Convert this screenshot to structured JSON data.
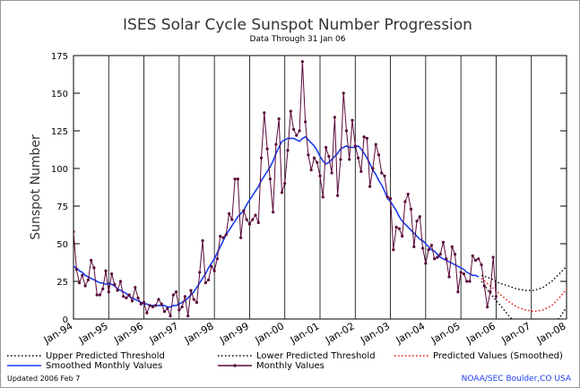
{
  "chart_data": {
    "type": "line",
    "title": "ISES Solar Cycle Sunspot Number Progression",
    "subtitle": "Data Through 31 Jan 06",
    "y_label": "Sunspot Number",
    "updated": "Updated 2006 Feb  7",
    "source": "NOAA/SEC Boulder,CO USA",
    "ylim": [
      0,
      175
    ],
    "yticks": [
      0,
      25,
      50,
      75,
      100,
      125,
      150,
      175
    ],
    "xlim": [
      "1994-01",
      "2008-01"
    ],
    "xticks": [
      {
        "value": "1994-01",
        "label": "Jan-94"
      },
      {
        "value": "1995-01",
        "label": "Jan-95"
      },
      {
        "value": "1996-01",
        "label": "Jan-96"
      },
      {
        "value": "1997-01",
        "label": "Jan-97"
      },
      {
        "value": "1998-01",
        "label": "Jan-98"
      },
      {
        "value": "1999-01",
        "label": "Jan-99"
      },
      {
        "value": "2000-01",
        "label": "Jan-00"
      },
      {
        "value": "2001-01",
        "label": "Jan-01"
      },
      {
        "value": "2002-01",
        "label": "Jan-02"
      },
      {
        "value": "2003-01",
        "label": "Jan-03"
      },
      {
        "value": "2004-01",
        "label": "Jan-04"
      },
      {
        "value": "2005-01",
        "label": "Jan-05"
      },
      {
        "value": "2006-01",
        "label": "Jan-06"
      },
      {
        "value": "2007-01",
        "label": "Jan-07"
      },
      {
        "value": "2008-01",
        "label": "Jan-08"
      }
    ],
    "grid": true,
    "series": [
      {
        "name": "Upper Predicted Threshold",
        "color": "#000000",
        "style": "dotted",
        "x": [
          "2005-08",
          "2005-11",
          "2006-02",
          "2006-05",
          "2006-08",
          "2006-11",
          "2007-02",
          "2007-05",
          "2007-08",
          "2007-11",
          "2008-01"
        ],
        "values": [
          29,
          27,
          24,
          22,
          20,
          19,
          19,
          21,
          25,
          31,
          35
        ]
      },
      {
        "name": "Lower Predicted Threshold",
        "color": "#000000",
        "style": "dotted",
        "x": [
          "2005-08",
          "2005-11",
          "2006-02",
          "2006-05",
          "2006-08",
          "2006-11",
          "2007-02",
          "2007-05",
          "2007-08",
          "2007-11",
          "2008-01"
        ],
        "values": [
          25,
          17,
          10,
          3,
          -4,
          -8,
          -9,
          -8,
          -5,
          2,
          8
        ]
      },
      {
        "name": "Predicted Values (Smoothed)",
        "color": "#e01010",
        "style": "dotted",
        "x": [
          "2005-08",
          "2005-11",
          "2006-02",
          "2006-05",
          "2006-08",
          "2006-11",
          "2007-02",
          "2007-05",
          "2007-08",
          "2007-11",
          "2008-01"
        ],
        "values": [
          27,
          22,
          17,
          12,
          8,
          6,
          5,
          6,
          9,
          15,
          20
        ]
      },
      {
        "name": "Smoothed Monthly Values",
        "color": "#1a3cf0",
        "style": "solid",
        "x": [
          "1994-01",
          "1994-02",
          "1994-03",
          "1994-04",
          "1994-05",
          "1994-06",
          "1994-07",
          "1994-08",
          "1994-09",
          "1994-10",
          "1994-11",
          "1994-12",
          "1995-01",
          "1995-02",
          "1995-03",
          "1995-04",
          "1995-05",
          "1995-06",
          "1995-07",
          "1995-08",
          "1995-09",
          "1995-10",
          "1995-11",
          "1995-12",
          "1996-01",
          "1996-02",
          "1996-03",
          "1996-04",
          "1996-05",
          "1996-06",
          "1996-07",
          "1996-08",
          "1996-09",
          "1996-10",
          "1996-11",
          "1996-12",
          "1997-01",
          "1997-02",
          "1997-03",
          "1997-04",
          "1997-05",
          "1997-06",
          "1997-07",
          "1997-08",
          "1997-09",
          "1997-10",
          "1997-11",
          "1997-12",
          "1998-01",
          "1998-02",
          "1998-03",
          "1998-04",
          "1998-05",
          "1998-06",
          "1998-07",
          "1998-08",
          "1998-09",
          "1998-10",
          "1998-11",
          "1998-12",
          "1999-01",
          "1999-02",
          "1999-03",
          "1999-04",
          "1999-05",
          "1999-06",
          "1999-07",
          "1999-08",
          "1999-09",
          "1999-10",
          "1999-11",
          "1999-12",
          "2000-01",
          "2000-02",
          "2000-03",
          "2000-04",
          "2000-05",
          "2000-06",
          "2000-07",
          "2000-08",
          "2000-09",
          "2000-10",
          "2000-11",
          "2000-12",
          "2001-01",
          "2001-02",
          "2001-03",
          "2001-04",
          "2001-05",
          "2001-06",
          "2001-07",
          "2001-08",
          "2001-09",
          "2001-10",
          "2001-11",
          "2001-12",
          "2002-01",
          "2002-02",
          "2002-03",
          "2002-04",
          "2002-05",
          "2002-06",
          "2002-07",
          "2002-08",
          "2002-09",
          "2002-10",
          "2002-11",
          "2002-12",
          "2003-01",
          "2003-02",
          "2003-03",
          "2003-04",
          "2003-05",
          "2003-06",
          "2003-07",
          "2003-08",
          "2003-09",
          "2003-10",
          "2003-11",
          "2003-12",
          "2004-01",
          "2004-02",
          "2004-03",
          "2004-04",
          "2004-05",
          "2004-06",
          "2004-07",
          "2004-08",
          "2004-09",
          "2004-10",
          "2004-11",
          "2004-12",
          "2005-01",
          "2005-02",
          "2005-03",
          "2005-04",
          "2005-05",
          "2005-06",
          "2005-07"
        ],
        "values": [
          35,
          34,
          32,
          31,
          29,
          28,
          27,
          26,
          25,
          24,
          24,
          23,
          24,
          23,
          22,
          20,
          19,
          18,
          17,
          15,
          14,
          13,
          12,
          11,
          10,
          10,
          9,
          9,
          9,
          9,
          9,
          9,
          8,
          8,
          9,
          9,
          10,
          11,
          12,
          14,
          16,
          18,
          21,
          24,
          27,
          30,
          34,
          37,
          40,
          44,
          48,
          52,
          56,
          59,
          62,
          65,
          68,
          70,
          72,
          76,
          79,
          82,
          85,
          88,
          92,
          95,
          98,
          101,
          105,
          110,
          114,
          118,
          119,
          120,
          120,
          120,
          119,
          118,
          120,
          121,
          119,
          117,
          115,
          112,
          108,
          105,
          103,
          104,
          106,
          108,
          110,
          113,
          114,
          115,
          114,
          114,
          114,
          115,
          113,
          110,
          107,
          103,
          99,
          96,
          92,
          89,
          85,
          80,
          78,
          75,
          72,
          68,
          65,
          63,
          61,
          59,
          57,
          55,
          53,
          52,
          50,
          48,
          46,
          45,
          43,
          41,
          40,
          39,
          38,
          37,
          36,
          35,
          34,
          33,
          31,
          30,
          29,
          29,
          28
        ]
      },
      {
        "name": "Monthly Values",
        "color": "#5a0a3a",
        "style": "solid",
        "marker": true,
        "x": [
          "1994-01",
          "1994-02",
          "1994-03",
          "1994-04",
          "1994-05",
          "1994-06",
          "1994-07",
          "1994-08",
          "1994-09",
          "1994-10",
          "1994-11",
          "1994-12",
          "1995-01",
          "1995-02",
          "1995-03",
          "1995-04",
          "1995-05",
          "1995-06",
          "1995-07",
          "1995-08",
          "1995-09",
          "1995-10",
          "1995-11",
          "1995-12",
          "1996-01",
          "1996-02",
          "1996-03",
          "1996-04",
          "1996-05",
          "1996-06",
          "1996-07",
          "1996-08",
          "1996-09",
          "1996-10",
          "1996-11",
          "1996-12",
          "1997-01",
          "1997-02",
          "1997-03",
          "1997-04",
          "1997-05",
          "1997-06",
          "1997-07",
          "1997-08",
          "1997-09",
          "1997-10",
          "1997-11",
          "1997-12",
          "1998-01",
          "1998-02",
          "1998-03",
          "1998-04",
          "1998-05",
          "1998-06",
          "1998-07",
          "1998-08",
          "1998-09",
          "1998-10",
          "1998-11",
          "1998-12",
          "1999-01",
          "1999-02",
          "1999-03",
          "1999-04",
          "1999-05",
          "1999-06",
          "1999-07",
          "1999-08",
          "1999-09",
          "1999-10",
          "1999-11",
          "1999-12",
          "2000-01",
          "2000-02",
          "2000-03",
          "2000-04",
          "2000-05",
          "2000-06",
          "2000-07",
          "2000-08",
          "2000-09",
          "2000-10",
          "2000-11",
          "2000-12",
          "2001-01",
          "2001-02",
          "2001-03",
          "2001-04",
          "2001-05",
          "2001-06",
          "2001-07",
          "2001-08",
          "2001-09",
          "2001-10",
          "2001-11",
          "2001-12",
          "2002-01",
          "2002-02",
          "2002-03",
          "2002-04",
          "2002-05",
          "2002-06",
          "2002-07",
          "2002-08",
          "2002-09",
          "2002-10",
          "2002-11",
          "2002-12",
          "2003-01",
          "2003-02",
          "2003-03",
          "2003-04",
          "2003-05",
          "2003-06",
          "2003-07",
          "2003-08",
          "2003-09",
          "2003-10",
          "2003-11",
          "2003-12",
          "2004-01",
          "2004-02",
          "2004-03",
          "2004-04",
          "2004-05",
          "2004-06",
          "2004-07",
          "2004-08",
          "2004-09",
          "2004-10",
          "2004-11",
          "2004-12",
          "2005-01",
          "2005-02",
          "2005-03",
          "2005-04",
          "2005-05",
          "2005-06",
          "2005-07",
          "2005-08",
          "2005-09",
          "2005-10",
          "2005-11",
          "2005-12",
          "2006-01"
        ],
        "values": [
          58,
          33,
          24,
          29,
          22,
          26,
          39,
          34,
          16,
          16,
          20,
          32,
          18,
          30,
          23,
          19,
          25,
          15,
          14,
          16,
          12,
          21,
          14,
          10,
          11,
          4,
          9,
          8,
          9,
          13,
          10,
          5,
          7,
          2,
          16,
          18,
          6,
          8,
          15,
          2,
          19,
          13,
          11,
          31,
          52,
          24,
          26,
          35,
          32,
          40,
          55,
          54,
          56,
          70,
          66,
          93,
          93,
          54,
          72,
          66,
          63,
          66,
          69,
          64,
          107,
          137,
          113,
          93,
          71,
          116,
          133,
          84,
          90,
          112,
          138,
          126,
          122,
          125,
          171,
          131,
          109,
          99,
          107,
          104,
          95,
          81,
          114,
          108,
          97,
          134,
          82,
          106,
          150,
          125,
          106,
          132,
          115,
          107,
          98,
          121,
          120,
          88,
          100,
          116,
          109,
          97,
          95,
          81,
          80,
          46,
          61,
          60,
          55,
          78,
          83,
          73,
          48,
          65,
          68,
          47,
          37,
          46,
          49,
          40,
          41,
          43,
          51,
          40,
          28,
          48,
          43,
          18,
          31,
          30,
          25,
          25,
          42,
          39,
          40,
          36,
          22,
          8,
          18,
          41,
          15
        ]
      }
    ]
  }
}
